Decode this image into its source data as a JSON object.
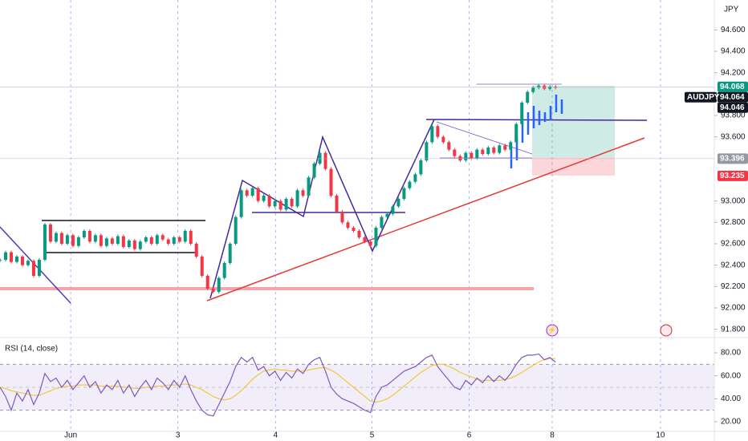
{
  "chart_data": {
    "type": "candlestick",
    "currency": "JPY",
    "symbol": "AUDJPY",
    "indicator_title": "RSI (14, close)",
    "close": [
      92.45,
      92.52,
      92.43,
      92.48,
      92.4,
      92.44,
      92.3,
      92.45,
      92.78,
      92.62,
      92.7,
      92.6,
      92.68,
      92.58,
      92.66,
      92.72,
      92.62,
      92.68,
      92.58,
      92.65,
      92.6,
      92.67,
      92.57,
      92.63,
      92.55,
      92.62,
      92.66,
      92.6,
      92.68,
      92.64,
      92.6,
      92.66,
      92.62,
      92.72,
      92.6,
      92.48,
      92.3,
      92.18,
      92.15,
      92.28,
      92.42,
      92.6,
      92.85,
      93.1,
      93.05,
      93.12,
      93.0,
      93.05,
      92.95,
      93.0,
      92.92,
      93.02,
      92.95,
      93.1,
      93.05,
      93.22,
      93.35,
      93.45,
      93.3,
      93.05,
      92.9,
      92.8,
      92.75,
      92.72,
      92.66,
      92.62,
      92.58,
      92.75,
      92.85,
      92.88,
      92.95,
      93.02,
      93.12,
      93.18,
      93.25,
      93.38,
      93.55,
      93.7,
      93.6,
      93.55,
      93.48,
      93.42,
      93.38,
      93.45,
      93.4,
      93.48,
      93.44,
      93.5,
      93.45,
      93.52,
      93.48,
      93.55,
      93.72,
      93.92,
      94.02,
      94.06,
      94.08,
      94.05,
      94.07,
      94.06
    ],
    "up_color": "#089981",
    "down_color": "#f23645",
    "rsi": [
      50,
      42,
      30,
      45,
      38,
      48,
      35,
      45,
      62,
      55,
      58,
      50,
      56,
      48,
      54,
      60,
      50,
      55,
      45,
      52,
      48,
      56,
      45,
      52,
      42,
      50,
      56,
      48,
      58,
      54,
      48,
      56,
      50,
      60,
      48,
      38,
      30,
      26,
      25,
      35,
      45,
      55,
      68,
      76,
      72,
      76,
      65,
      68,
      60,
      64,
      56,
      63,
      58,
      66,
      62,
      70,
      74,
      76,
      64,
      50,
      44,
      40,
      38,
      36,
      33,
      30,
      28,
      42,
      50,
      52,
      56,
      60,
      64,
      66,
      68,
      72,
      76,
      78,
      68,
      62,
      56,
      50,
      48,
      56,
      52,
      58,
      54,
      60,
      55,
      60,
      56,
      62,
      70,
      76,
      78,
      78,
      79,
      74,
      76,
      72
    ],
    "rsi_ma": [
      50,
      49,
      47,
      46,
      45,
      44,
      43,
      43,
      45,
      47,
      49,
      50,
      51,
      51,
      52,
      52,
      52,
      52,
      51,
      51,
      51,
      51,
      50,
      50,
      49,
      49,
      50,
      50,
      51,
      51,
      52,
      52,
      52,
      53,
      52,
      50,
      48,
      45,
      42,
      40,
      39,
      40,
      43,
      47,
      52,
      57,
      61,
      64,
      65,
      66,
      65,
      65,
      64,
      64,
      64,
      65,
      66,
      67,
      67,
      65,
      62,
      58,
      54,
      50,
      46,
      42,
      38,
      37,
      38,
      40,
      43,
      47,
      51,
      55,
      59,
      63,
      66,
      69,
      70,
      70,
      68,
      66,
      63,
      61,
      59,
      57,
      56,
      56,
      56,
      56,
      57,
      58,
      60,
      63,
      66,
      69,
      72,
      74,
      75,
      75
    ],
    "rsi_color": "#7e57c2",
    "rsi_ma_color": "#f0c83c",
    "rsi_band": [
      30,
      70
    ],
    "rsi_mid": 50,
    "xlim": [
      0,
      123
    ],
    "xticks": [
      {
        "value": 12.6,
        "label": "Jun"
      },
      {
        "value": 31.7,
        "label": "3"
      },
      {
        "value": 49.1,
        "label": "4"
      },
      {
        "value": 66.3,
        "label": "5"
      },
      {
        "value": 83.6,
        "label": "6"
      },
      {
        "value": 98.4,
        "label": "8"
      },
      {
        "value": 117.7,
        "label": "10"
      }
    ],
    "ylim": [
      91.73,
      94.88
    ],
    "yticks": [
      {
        "value": 94.6,
        "label": "94.600"
      },
      {
        "value": 94.4,
        "label": "94.400"
      },
      {
        "value": 94.2,
        "label": "94.200"
      },
      {
        "value": 93.8,
        "label": "93.800"
      },
      {
        "value": 93.6,
        "label": "93.600"
      },
      {
        "value": 93.0,
        "label": "93.000"
      },
      {
        "value": 92.8,
        "label": "92.800"
      },
      {
        "value": 92.6,
        "label": "92.600"
      },
      {
        "value": 92.4,
        "label": "92.400"
      },
      {
        "value": 92.2,
        "label": "92.200"
      },
      {
        "value": 92.0,
        "label": "92.000"
      },
      {
        "value": 91.8,
        "label": "91.800"
      }
    ],
    "y2lim": [
      11.6,
      90.5
    ],
    "y2ticks": [
      {
        "value": 80,
        "label": "80.00"
      },
      {
        "value": 60,
        "label": "60.00"
      },
      {
        "value": 40,
        "label": "40.00"
      },
      {
        "value": 20,
        "label": "20.00"
      }
    ],
    "price_labels": [
      {
        "value": 94.068,
        "color": "#089981"
      },
      {
        "value": 94.064,
        "color": "#131722"
      },
      {
        "value": 94.046,
        "color": "#131722"
      },
      {
        "value": 93.396,
        "color": "#9598a1"
      },
      {
        "value": 93.235,
        "color": "#f23645"
      }
    ]
  }
}
